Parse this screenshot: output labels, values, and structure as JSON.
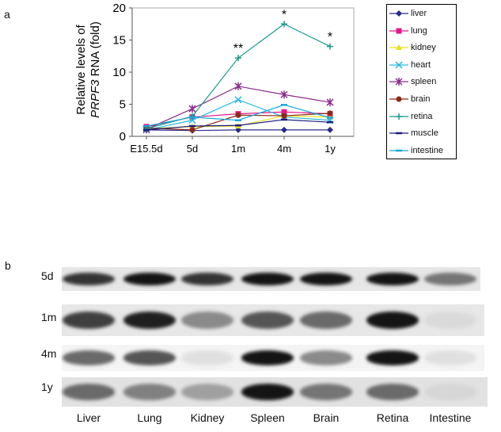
{
  "panel_labels": {
    "a": "a",
    "b": "b"
  },
  "chart_data": {
    "type": "line",
    "x": [
      "E15.5d",
      "5d",
      "1m",
      "4m",
      "1y"
    ],
    "ylim": [
      0,
      20
    ],
    "yticks": [
      "0",
      "5",
      "10",
      "15",
      "20"
    ],
    "ylabel_line1": "Relative levels of",
    "ylabel_line2_italic": "PRPF3",
    "ylabel_line2_rest": " RNA (fold)",
    "grid": false,
    "legend_position": "right",
    "annotations": [
      {
        "x": "1m",
        "y": 12.2,
        "text": "**"
      },
      {
        "x": "4m",
        "y": 17.5,
        "text": "*"
      },
      {
        "x": "1y",
        "y": 14.0,
        "text": "*"
      }
    ],
    "series": [
      {
        "name": "liver",
        "color": "#2b2b8c",
        "marker": "diamond",
        "values": [
          1.0,
          0.9,
          1.0,
          1.0,
          1.0
        ]
      },
      {
        "name": "lung",
        "color": "#e0198a",
        "marker": "square",
        "values": [
          1.5,
          3.0,
          3.5,
          3.8,
          3.5
        ]
      },
      {
        "name": "kidney",
        "color": "#e8e01c",
        "marker": "triangle",
        "values": [
          1.2,
          1.5,
          1.6,
          3.2,
          3.0
        ]
      },
      {
        "name": "heart",
        "color": "#2ab8e0",
        "marker": "x",
        "values": [
          1.0,
          2.5,
          5.7,
          3.0,
          2.5
        ]
      },
      {
        "name": "spleen",
        "color": "#8a2a8a",
        "marker": "star",
        "values": [
          1.1,
          4.3,
          7.8,
          6.5,
          5.3
        ]
      },
      {
        "name": "brain",
        "color": "#8b2a1a",
        "marker": "circle",
        "values": [
          1.3,
          1.0,
          3.3,
          3.2,
          3.6
        ]
      },
      {
        "name": "retina",
        "color": "#1a9a8a",
        "marker": "plus",
        "values": [
          1.2,
          3.1,
          12.2,
          17.5,
          14.0
        ]
      },
      {
        "name": "muscle",
        "color": "#1a1a7a",
        "marker": "dash",
        "values": [
          1.0,
          1.6,
          1.7,
          2.6,
          2.2
        ]
      },
      {
        "name": "intestine",
        "color": "#1aa8d8",
        "marker": "dash",
        "values": [
          1.6,
          3.0,
          2.5,
          4.9,
          2.9
        ]
      }
    ]
  },
  "blot": {
    "rows": [
      "5d",
      "1m",
      "4m",
      "1y"
    ],
    "columns": [
      "Liver",
      "Lung",
      "Kidney",
      "Spleen",
      "Brain",
      "Retina",
      "Intestine"
    ]
  }
}
